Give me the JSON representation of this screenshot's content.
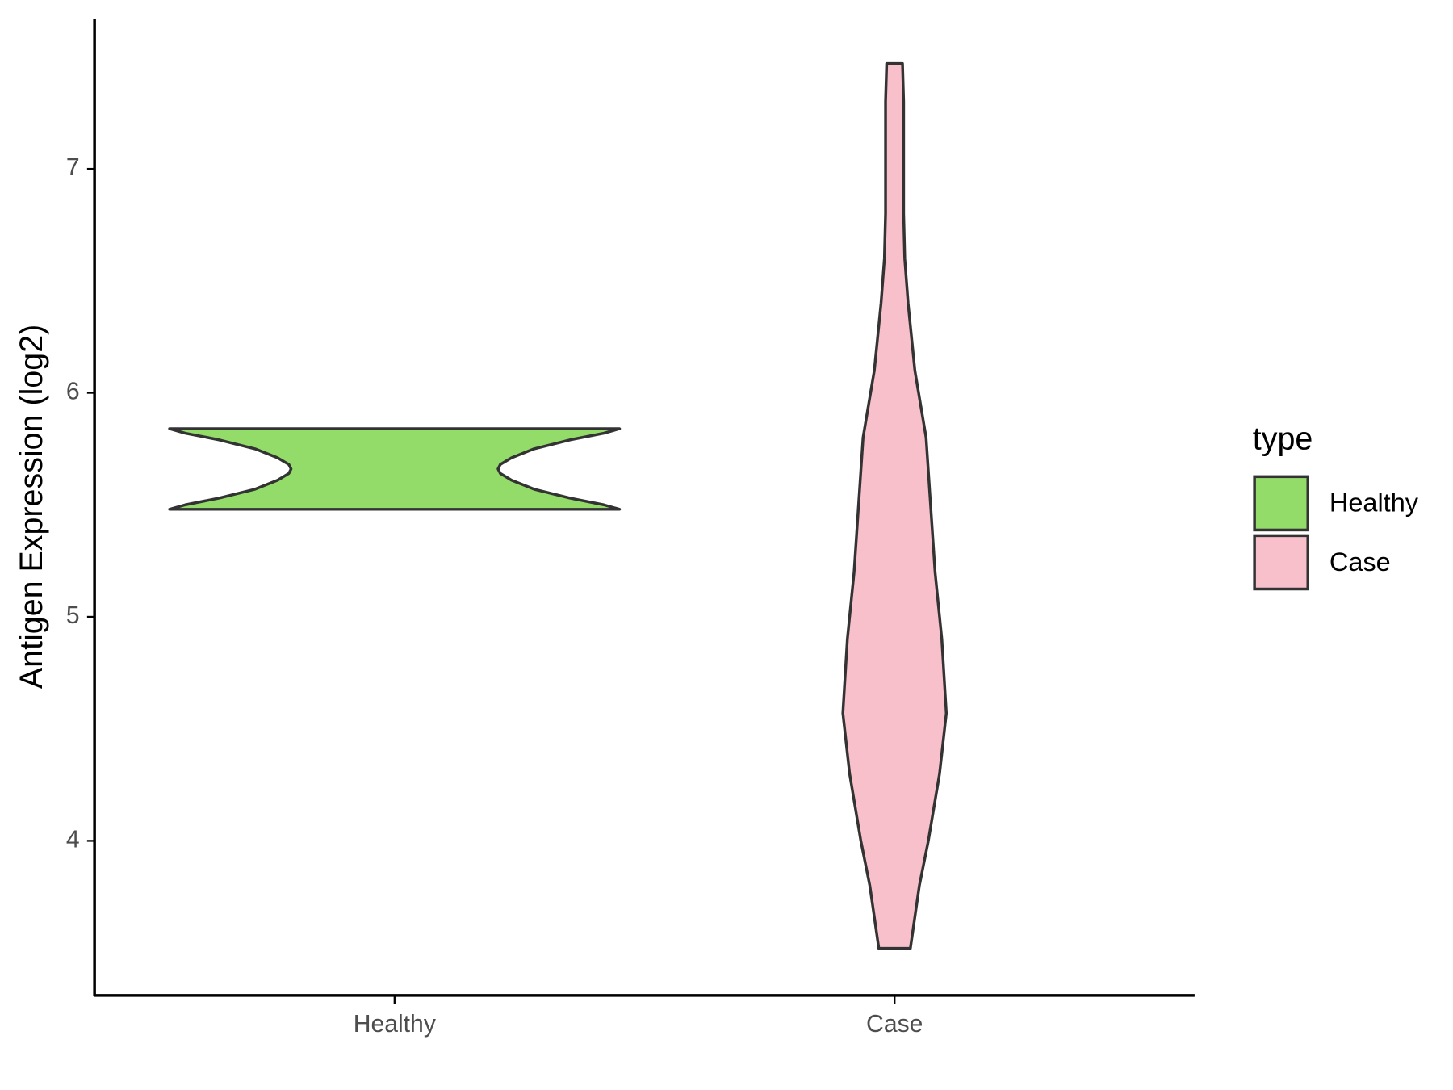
{
  "chart_data": {
    "type": "violin",
    "ylabel": "Antigen Expression (log2)",
    "categories": [
      "Healthy",
      "Case"
    ],
    "legend_title": "type",
    "ylim": [
      3.31,
      7.67
    ],
    "yticks": [
      4,
      5,
      6,
      7
    ],
    "series": [
      {
        "name": "Healthy",
        "color": "#93dc6a",
        "y": [
          5.48,
          5.5,
          5.53,
          5.57,
          5.61,
          5.64,
          5.66,
          5.68,
          5.71,
          5.75,
          5.79,
          5.82,
          5.84
        ],
        "width": [
          1.0,
          0.93,
          0.78,
          0.62,
          0.52,
          0.47,
          0.46,
          0.47,
          0.52,
          0.62,
          0.78,
          0.93,
          1.0
        ]
      },
      {
        "name": "Case",
        "color": "#f7c0cb",
        "y": [
          3.52,
          3.8,
          4.0,
          4.3,
          4.57,
          4.9,
          5.2,
          5.5,
          5.8,
          6.1,
          6.4,
          6.6,
          6.8,
          7.1,
          7.3,
          7.47
        ],
        "width": [
          0.07,
          0.11,
          0.15,
          0.2,
          0.23,
          0.21,
          0.18,
          0.16,
          0.14,
          0.09,
          0.06,
          0.045,
          0.04,
          0.04,
          0.04,
          0.035
        ]
      }
    ]
  }
}
